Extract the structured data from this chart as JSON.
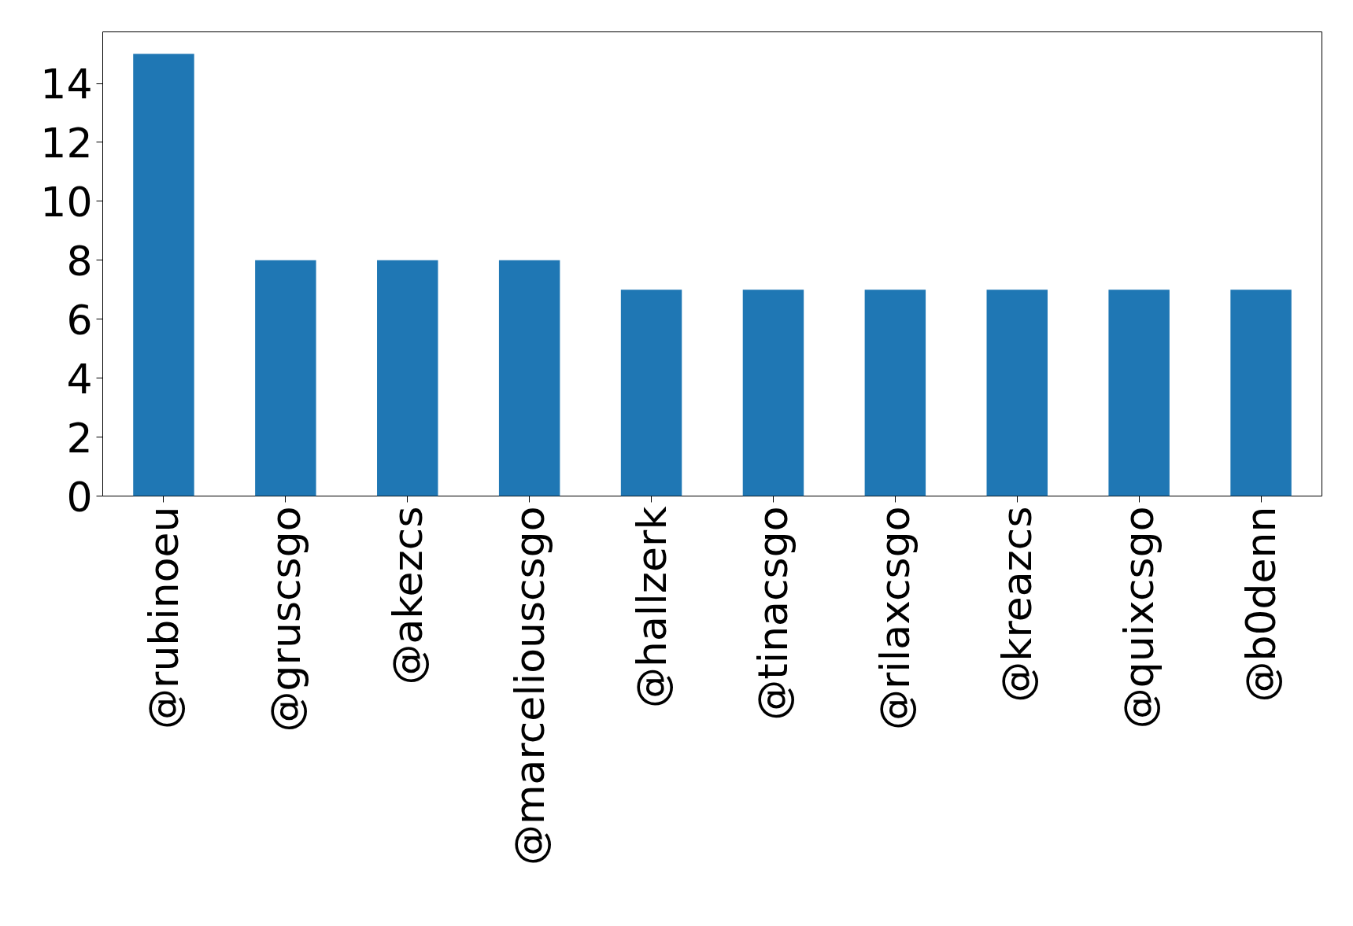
{
  "chart_data": {
    "type": "bar",
    "categories": [
      "@rubinoeu",
      "@gruscsgo",
      "@akezcs",
      "@marceliouscsgo",
      "@hallzerk",
      "@tinacsgo",
      "@rilaxcsgo",
      "@kreazcs",
      "@quixcsgo",
      "@b0denn"
    ],
    "values": [
      15,
      8,
      8,
      8,
      7,
      7,
      7,
      7,
      7,
      7
    ],
    "color": "#1f77b4",
    "ylim": [
      0,
      15.75
    ],
    "yticks": [
      0,
      2,
      4,
      6,
      8,
      10,
      12,
      14
    ],
    "grid": false
  }
}
